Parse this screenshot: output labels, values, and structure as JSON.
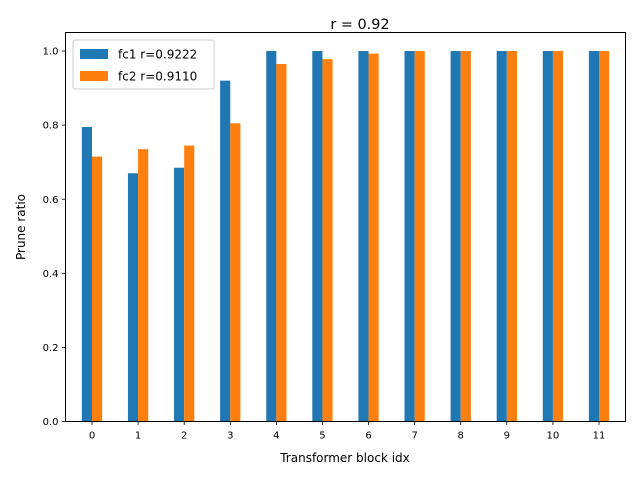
{
  "chart_data": {
    "type": "bar",
    "title": "r = 0.92",
    "xlabel": "Transformer block idx",
    "ylabel": "Prune ratio",
    "categories": [
      "0",
      "1",
      "2",
      "3",
      "4",
      "5",
      "6",
      "7",
      "8",
      "9",
      "10",
      "11"
    ],
    "series": [
      {
        "name": "fc1 r=0.9222",
        "color": "#1f77b4",
        "values": [
          0.795,
          0.67,
          0.685,
          0.92,
          1.0,
          1.0,
          1.0,
          1.0,
          1.0,
          1.0,
          1.0,
          1.0
        ]
      },
      {
        "name": "fc2 r=0.9110",
        "color": "#ff7f0e",
        "values": [
          0.715,
          0.735,
          0.745,
          0.805,
          0.965,
          0.978,
          0.993,
          1.0,
          1.0,
          1.0,
          1.0,
          1.0
        ]
      }
    ],
    "ylim": [
      0,
      1.05
    ],
    "yticks": [
      "0.0",
      "0.2",
      "0.4",
      "0.6",
      "0.8",
      "1.0"
    ],
    "grid": false,
    "legend": "top-left"
  }
}
